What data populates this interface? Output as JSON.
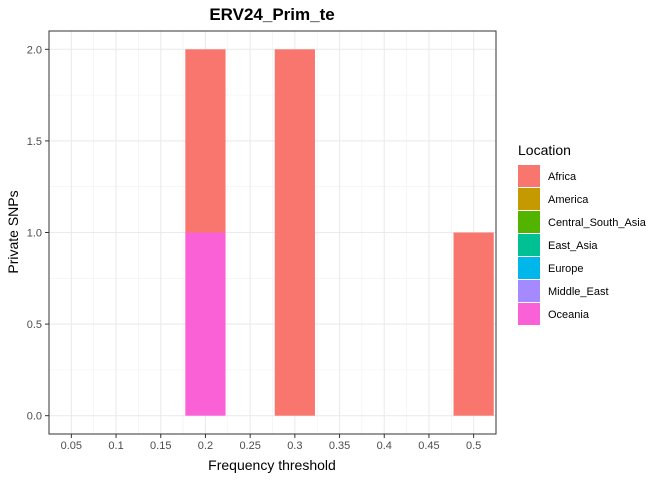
{
  "chart_data": {
    "type": "bar",
    "stacked": true,
    "title": "ERV24_Prim_te",
    "xlabel": "Frequency threshold",
    "ylabel": "Private SNPs",
    "xlim": [
      0.025,
      0.525
    ],
    "ylim": [
      -0.1,
      2.1
    ],
    "bar_width": 0.045,
    "x_ticks": [
      "0.05",
      "0.1",
      "0.15",
      "0.2",
      "0.25",
      "0.3",
      "0.35",
      "0.4",
      "0.45",
      "0.5"
    ],
    "y_ticks": [
      "0.0",
      "0.5",
      "1.0",
      "1.5",
      "2.0"
    ],
    "x": [
      0.2,
      0.3,
      0.5
    ],
    "series": [
      {
        "name": "Africa",
        "color": "#F8766D",
        "values": [
          1,
          2,
          1
        ]
      },
      {
        "name": "America",
        "color": "#C49A00",
        "values": [
          0,
          0,
          0
        ]
      },
      {
        "name": "Central_South_Asia",
        "color": "#53B400",
        "values": [
          0,
          0,
          0
        ]
      },
      {
        "name": "East_Asia",
        "color": "#00C094",
        "values": [
          0,
          0,
          0
        ]
      },
      {
        "name": "Europe",
        "color": "#00B6EB",
        "values": [
          0,
          0,
          0
        ]
      },
      {
        "name": "Middle_East",
        "color": "#A58AFF",
        "values": [
          0,
          0,
          0
        ]
      },
      {
        "name": "Oceania",
        "color": "#FB61D7",
        "values": [
          1,
          0,
          0
        ]
      }
    ],
    "stack_order_bottom_to_top": [
      "Oceania",
      "Middle_East",
      "Europe",
      "East_Asia",
      "Central_South_Asia",
      "America",
      "Africa"
    ],
    "grid": true,
    "legend": {
      "title": "Location",
      "position": "right"
    }
  }
}
